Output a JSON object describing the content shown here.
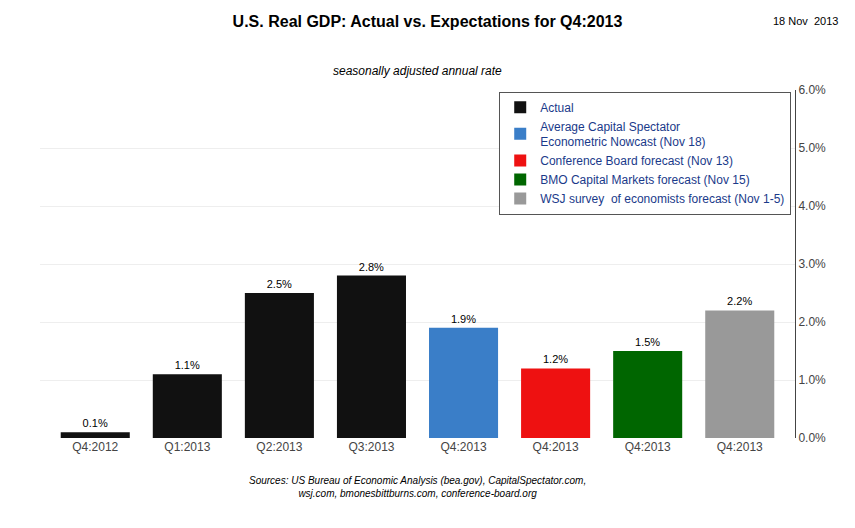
{
  "chart_data": {
    "type": "bar",
    "title": "U.S. Real GDP: Actual vs. Expectations for Q4:2013",
    "subtitle": "seasonally adjusted annual rate",
    "annotations": [
      "18 Nov  2013",
      "Sources: US Bureau of Economic Analysis (bea.gov), CapitalSpectator.com,\nwsj.com, bmonesbittburns.com, conference-board.org"
    ],
    "categories": [
      "Q4:2012",
      "Q1:2013",
      "Q2:2013",
      "Q3:2013",
      "Q4:2013",
      "Q4:2013",
      "Q4:2013",
      "Q4:2013"
    ],
    "series": [
      {
        "name": "Actual",
        "color": "#111111",
        "values": [
          0.1,
          1.1,
          2.5,
          2.8,
          null,
          null,
          null,
          null
        ],
        "value_labels": [
          "0.1%",
          "1.1%",
          "2.5%",
          "2.8%",
          null,
          null,
          null,
          null
        ]
      },
      {
        "name": "Average Capital Spectator\nEconometric Nowcast (Nov 18)",
        "color": "#3a7ec8",
        "values": [
          null,
          null,
          null,
          null,
          1.9,
          null,
          null,
          null
        ],
        "value_labels": [
          null,
          null,
          null,
          null,
          "1.9%",
          null,
          null,
          null
        ]
      },
      {
        "name": "Conference Board forecast (Nov 13)",
        "color": "#ee1111",
        "values": [
          null,
          null,
          null,
          null,
          null,
          1.2,
          null,
          null
        ],
        "value_labels": [
          null,
          null,
          null,
          null,
          null,
          "1.2%",
          null,
          null
        ]
      },
      {
        "name": "BMO Capital Markets forecast (Nov 15)",
        "color": "#006600",
        "values": [
          null,
          null,
          null,
          null,
          null,
          null,
          1.5,
          null
        ],
        "value_labels": [
          null,
          null,
          null,
          null,
          null,
          null,
          "1.5%",
          null
        ]
      },
      {
        "name": "WSJ survey  of economists forecast (Nov 1-5)",
        "color": "#999999",
        "values": [
          null,
          null,
          null,
          null,
          null,
          null,
          null,
          2.2
        ],
        "value_labels": [
          null,
          null,
          null,
          null,
          null,
          null,
          null,
          "2.2%"
        ]
      }
    ],
    "ylim": [
      0,
      6.0
    ],
    "yticks": [
      {
        "value": 0.0,
        "label": "0.0%"
      },
      {
        "value": 1.0,
        "label": "1.0%"
      },
      {
        "value": 2.0,
        "label": "2.0%"
      },
      {
        "value": 3.0,
        "label": "3.0%"
      },
      {
        "value": 4.0,
        "label": "4.0%"
      },
      {
        "value": 5.0,
        "label": "5.0%"
      },
      {
        "value": 6.0,
        "label": "6.0%"
      }
    ],
    "grid": true,
    "legend": "upper right",
    "data_labels": true
  }
}
